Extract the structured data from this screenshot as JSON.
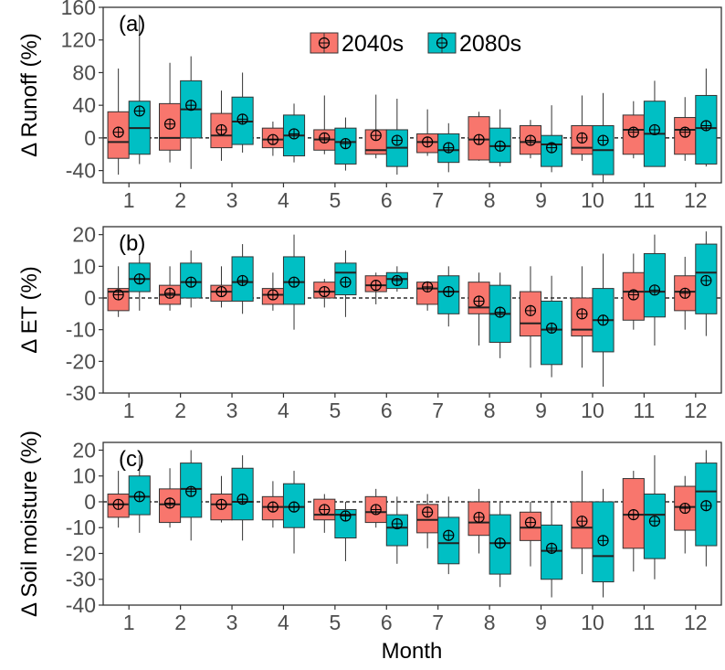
{
  "colors": {
    "s2040": "#F8766D",
    "s2080": "#00BFC4",
    "frame": "#333333",
    "tick_text": "#4d4d4d",
    "text": "#000000"
  },
  "figure": {
    "xlabel": "Month"
  },
  "legend": {
    "items": [
      "2040s",
      "2080s"
    ],
    "placement": "top-center inside panel (a)"
  },
  "chart_data": [
    {
      "type": "box",
      "panel_label": "(a)",
      "ylabel": "Δ Runoff (%)",
      "ylim": [
        -55,
        160
      ],
      "yticks": [
        -40,
        0,
        40,
        80,
        120,
        160
      ],
      "ytick_labels": [
        "-40",
        "0",
        "40",
        "80",
        "120",
        "160"
      ],
      "zero_line": "dashed",
      "categories": [
        "1",
        "2",
        "3",
        "4",
        "5",
        "6",
        "7",
        "8",
        "9",
        "10",
        "11",
        "12"
      ],
      "series": [
        {
          "name": "2040s",
          "boxes": [
            {
              "lo": -45,
              "q1": -25,
              "med": -5,
              "q3": 32,
              "hi": 85,
              "mean": 7
            },
            {
              "lo": -30,
              "q1": -15,
              "med": 0,
              "q3": 42,
              "hi": 92,
              "mean": 17
            },
            {
              "lo": -28,
              "q1": -12,
              "med": 3,
              "q3": 30,
              "hi": 58,
              "mean": 10
            },
            {
              "lo": -22,
              "q1": -12,
              "med": -2,
              "q3": 12,
              "hi": 20,
              "mean": -2
            },
            {
              "lo": -20,
              "q1": -15,
              "med": -2,
              "q3": 10,
              "hi": 52,
              "mean": 0
            },
            {
              "lo": -25,
              "q1": -20,
              "med": -15,
              "q3": 10,
              "hi": 53,
              "mean": 3
            },
            {
              "lo": -22,
              "q1": -18,
              "med": -5,
              "q3": 5,
              "hi": 35,
              "mean": -5
            },
            {
              "lo": -28,
              "q1": -27,
              "med": -2,
              "q3": 26,
              "hi": 32,
              "mean": -2
            },
            {
              "lo": -25,
              "q1": -20,
              "med": -5,
              "q3": 15,
              "hi": 22,
              "mean": -3
            },
            {
              "lo": -28,
              "q1": -20,
              "med": -12,
              "q3": 15,
              "hi": 52,
              "mean": 0
            },
            {
              "lo": -25,
              "q1": -20,
              "med": 10,
              "q3": 28,
              "hi": 45,
              "mean": 7
            },
            {
              "lo": -28,
              "q1": -20,
              "med": 10,
              "q3": 25,
              "hi": 50,
              "mean": 7
            }
          ]
        },
        {
          "name": "2080s",
          "boxes": [
            {
              "lo": -32,
              "q1": -20,
              "med": 12,
              "q3": 45,
              "hi": 150,
              "mean": 33
            },
            {
              "lo": -38,
              "q1": 0,
              "med": 35,
              "q3": 70,
              "hi": 100,
              "mean": 40
            },
            {
              "lo": -18,
              "q1": -8,
              "med": 20,
              "q3": 50,
              "hi": 80,
              "mean": 23
            },
            {
              "lo": -30,
              "q1": -22,
              "med": 3,
              "q3": 28,
              "hi": 42,
              "mean": 5
            },
            {
              "lo": -40,
              "q1": -32,
              "med": -5,
              "q3": 12,
              "hi": 25,
              "mean": -7
            },
            {
              "lo": -45,
              "q1": -35,
              "med": -12,
              "q3": 10,
              "hi": 48,
              "mean": -3
            },
            {
              "lo": -42,
              "q1": -30,
              "med": -15,
              "q3": 5,
              "hi": 18,
              "mean": -12
            },
            {
              "lo": -35,
              "q1": -30,
              "med": -10,
              "q3": 12,
              "hi": 35,
              "mean": -10
            },
            {
              "lo": -42,
              "q1": -35,
              "med": -8,
              "q3": 3,
              "hi": 40,
              "mean": -12
            },
            {
              "lo": -55,
              "q1": -45,
              "med": -15,
              "q3": 15,
              "hi": 55,
              "mean": -3
            },
            {
              "lo": -35,
              "q1": -35,
              "med": 5,
              "q3": 45,
              "hi": 70,
              "mean": 10
            },
            {
              "lo": -35,
              "q1": -32,
              "med": 12,
              "q3": 52,
              "hi": 85,
              "mean": 15
            }
          ]
        }
      ]
    },
    {
      "type": "box",
      "panel_label": "(b)",
      "ylabel": "Δ ET (%)",
      "ylim": [
        -30,
        22.5
      ],
      "yticks": [
        -30,
        -20,
        -10,
        0,
        10,
        20
      ],
      "ytick_labels": [
        "-30",
        "-20",
        "-10",
        "0",
        "10",
        "20"
      ],
      "zero_line": "dashed",
      "categories": [
        "1",
        "2",
        "3",
        "4",
        "5",
        "6",
        "7",
        "8",
        "9",
        "10",
        "11",
        "12"
      ],
      "series": [
        {
          "name": "2040s",
          "boxes": [
            {
              "lo": -6,
              "q1": -4,
              "med": 2,
              "q3": 3,
              "hi": 10,
              "mean": 1
            },
            {
              "lo": -4,
              "q1": -2,
              "med": 1,
              "q3": 4,
              "hi": 10,
              "mean": 1.5
            },
            {
              "lo": -3,
              "q1": -1,
              "med": 2,
              "q3": 4,
              "hi": 10,
              "mean": 2
            },
            {
              "lo": -4,
              "q1": -2,
              "med": 1,
              "q3": 3,
              "hi": 8,
              "mean": 1
            },
            {
              "lo": -3,
              "q1": 0,
              "med": 2,
              "q3": 5,
              "hi": 6,
              "mean": 2
            },
            {
              "lo": -2,
              "q1": 2,
              "med": 4,
              "q3": 7,
              "hi": 8,
              "mean": 4
            },
            {
              "lo": -4,
              "q1": -2,
              "med": 3,
              "q3": 5,
              "hi": 5,
              "mean": 3.5
            },
            {
              "lo": -15,
              "q1": -5,
              "med": -3,
              "q3": 5,
              "hi": 8,
              "mean": -1
            },
            {
              "lo": -22,
              "q1": -12,
              "med": -8,
              "q3": 2,
              "hi": 10,
              "mean": -4
            },
            {
              "lo": -22,
              "q1": -12,
              "med": -10,
              "q3": 0,
              "hi": 10,
              "mean": -5
            },
            {
              "lo": -10,
              "q1": -7,
              "med": 2,
              "q3": 8,
              "hi": 14,
              "mean": 1
            },
            {
              "lo": -10,
              "q1": -4,
              "med": 2,
              "q3": 7,
              "hi": 13,
              "mean": 1.5
            }
          ]
        },
        {
          "name": "2080s",
          "boxes": [
            {
              "lo": -4,
              "q1": 2,
              "med": 6,
              "q3": 11,
              "hi": 14,
              "mean": 6
            },
            {
              "lo": -3,
              "q1": 0,
              "med": 5,
              "q3": 11,
              "hi": 15,
              "mean": 5
            },
            {
              "lo": -5,
              "q1": -1,
              "med": 5,
              "q3": 13,
              "hi": 17,
              "mean": 5.5
            },
            {
              "lo": -10,
              "q1": -2,
              "med": 5,
              "q3": 13,
              "hi": 20,
              "mean": 5
            },
            {
              "lo": -6,
              "q1": 1,
              "med": 8,
              "q3": 11,
              "hi": 15,
              "mean": 5
            },
            {
              "lo": 2,
              "q1": 3,
              "med": 6,
              "q3": 8,
              "hi": 10,
              "mean": 5.5
            },
            {
              "lo": -9,
              "q1": -5,
              "med": 2,
              "q3": 7,
              "hi": 10,
              "mean": 2
            },
            {
              "lo": -19,
              "q1": -14,
              "med": -5,
              "q3": 4,
              "hi": 8,
              "mean": -4.5
            },
            {
              "lo": -25,
              "q1": -21,
              "med": -10,
              "q3": -1,
              "hi": 7,
              "mean": -9.5
            },
            {
              "lo": -28,
              "q1": -17,
              "med": -7,
              "q3": 3,
              "hi": 14,
              "mean": -7
            },
            {
              "lo": -15,
              "q1": -6,
              "med": 2,
              "q3": 14,
              "hi": 20,
              "mean": 2.5
            },
            {
              "lo": -12,
              "q1": -5,
              "med": 8,
              "q3": 17,
              "hi": 21,
              "mean": 5.5
            }
          ]
        }
      ]
    },
    {
      "type": "box",
      "panel_label": "(c)",
      "ylabel": "Δ Soil moisture (%)",
      "ylim": [
        -40,
        23
      ],
      "yticks": [
        -40,
        -30,
        -20,
        -10,
        0,
        10,
        20
      ],
      "ytick_labels": [
        "-40",
        "-30",
        "-20",
        "-10",
        "0",
        "10",
        "20"
      ],
      "zero_line": "dashed",
      "categories": [
        "1",
        "2",
        "3",
        "4",
        "5",
        "6",
        "7",
        "8",
        "9",
        "10",
        "11",
        "12"
      ],
      "series": [
        {
          "name": "2040s",
          "boxes": [
            {
              "lo": -10,
              "q1": -6,
              "med": -1,
              "q3": 3,
              "hi": 12,
              "mean": -1
            },
            {
              "lo": -10,
              "q1": -8,
              "med": -1,
              "q3": 5,
              "hi": 13,
              "mean": -0.5
            },
            {
              "lo": -8,
              "q1": -7,
              "med": -1,
              "q3": 3,
              "hi": 10,
              "mean": -1
            },
            {
              "lo": -10,
              "q1": -7,
              "med": -2,
              "q3": 2,
              "hi": 8,
              "mean": -2
            },
            {
              "lo": -12,
              "q1": -7,
              "med": -5,
              "q3": 1,
              "hi": 3,
              "mean": -3
            },
            {
              "lo": -10,
              "q1": -8,
              "med": -4,
              "q3": 2,
              "hi": 5,
              "mean": -3
            },
            {
              "lo": -18,
              "q1": -12,
              "med": -7,
              "q3": -1,
              "hi": 3,
              "mean": -4
            },
            {
              "lo": -20,
              "q1": -13,
              "med": -8,
              "q3": 0,
              "hi": 5,
              "mean": -6
            },
            {
              "lo": -25,
              "q1": -15,
              "med": -10,
              "q3": -4,
              "hi": 0,
              "mean": -8
            },
            {
              "lo": -28,
              "q1": -18,
              "med": -10,
              "q3": 0,
              "hi": 12,
              "mean": -7.5
            },
            {
              "lo": -27,
              "q1": -18,
              "med": -5,
              "q3": 9,
              "hi": 12,
              "mean": -5
            },
            {
              "lo": -20,
              "q1": -11,
              "med": -2,
              "q3": 6,
              "hi": 10,
              "mean": -2.5
            }
          ]
        },
        {
          "name": "2080s",
          "boxes": [
            {
              "lo": -12,
              "q1": -5,
              "med": 2,
              "q3": 10,
              "hi": 18,
              "mean": 2
            },
            {
              "lo": -15,
              "q1": -6,
              "med": 5,
              "q3": 15,
              "hi": 20,
              "mean": 4
            },
            {
              "lo": -15,
              "q1": -7,
              "med": 0,
              "q3": 13,
              "hi": 18,
              "mean": 1
            },
            {
              "lo": -20,
              "q1": -10,
              "med": -2,
              "q3": 7,
              "hi": 12,
              "mean": -2
            },
            {
              "lo": -23,
              "q1": -14,
              "med": -5,
              "q3": -3,
              "hi": 0,
              "mean": -5.5
            },
            {
              "lo": -24,
              "q1": -17,
              "med": -10,
              "q3": -5,
              "hi": 2,
              "mean": -8.5
            },
            {
              "lo": -28,
              "q1": -24,
              "med": -16,
              "q3": -6,
              "hi": 2,
              "mean": -13
            },
            {
              "lo": -33,
              "q1": -28,
              "med": -16,
              "q3": -5,
              "hi": 0,
              "mean": -16
            },
            {
              "lo": -37,
              "q1": -30,
              "med": -19,
              "q3": -9,
              "hi": 0,
              "mean": -18
            },
            {
              "lo": -37,
              "q1": -31,
              "med": -21,
              "q3": 0,
              "hi": 5,
              "mean": -15
            },
            {
              "lo": -30,
              "q1": -22,
              "med": -5,
              "q3": 3,
              "hi": 18,
              "mean": -7.5
            },
            {
              "lo": -25,
              "q1": -17,
              "med": 4,
              "q3": 15,
              "hi": 20,
              "mean": -1.5
            }
          ]
        }
      ]
    }
  ]
}
